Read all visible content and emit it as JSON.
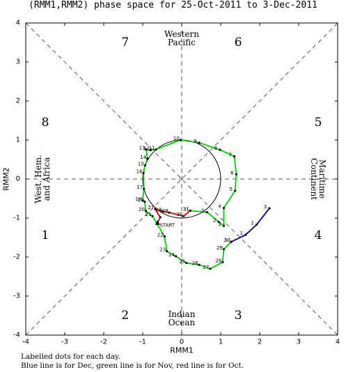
{
  "chart_data": {
    "type": "line",
    "title": "(RMM1,RMM2) phase space for 25-Oct-2011 to  3-Dec-2011",
    "xlabel": "RMM1",
    "ylabel": "RMM2",
    "xlim": [
      -4,
      4
    ],
    "ylim": [
      -4,
      4
    ],
    "x_ticks": [
      -4,
      -3,
      -2,
      -1,
      0,
      1,
      2,
      3,
      4
    ],
    "y_ticks": [
      -4,
      -3,
      -2,
      -1,
      0,
      1,
      2,
      3,
      4
    ],
    "grid": false,
    "unit_circle_radius": 1,
    "phases": [
      {
        "label": "1",
        "x": -3.5,
        "y": -1.45
      },
      {
        "label": "2",
        "x": -1.45,
        "y": -3.5
      },
      {
        "label": "3",
        "x": 1.45,
        "y": -3.5
      },
      {
        "label": "4",
        "x": 3.5,
        "y": -1.45
      },
      {
        "label": "5",
        "x": 3.5,
        "y": 1.45
      },
      {
        "label": "6",
        "x": 1.45,
        "y": 3.5
      },
      {
        "label": "7",
        "x": -1.45,
        "y": 3.5
      },
      {
        "label": "8",
        "x": -3.5,
        "y": 1.45
      }
    ],
    "regions": [
      {
        "id": "western-pacific",
        "lines": [
          "Western",
          "Pacific"
        ]
      },
      {
        "id": "indian-ocean",
        "lines": [
          "Indian",
          "Ocean"
        ]
      },
      {
        "id": "maritime-continent",
        "lines": [
          "Maritime",
          "Continent"
        ]
      },
      {
        "id": "west-hem-africa",
        "lines": [
          "West. Hem.",
          "and Africa"
        ]
      }
    ],
    "series": [
      {
        "name": "Oct",
        "color": "#cc0000",
        "points": [
          {
            "label": "",
            "x": -0.62,
            "y": -1.12
          },
          {
            "label": "",
            "x": -0.55,
            "y": -0.98
          },
          {
            "label": "27",
            "x": -0.68,
            "y": -0.77
          },
          {
            "label": "28",
            "x": -0.48,
            "y": -0.83
          },
          {
            "label": "29",
            "x": -0.32,
            "y": -0.86
          },
          {
            "label": "30",
            "x": 0.05,
            "y": -0.95
          },
          {
            "label": "31",
            "x": 0.22,
            "y": -0.81
          }
        ]
      },
      {
        "name": "Nov",
        "color": "#00cc00",
        "points": [
          {
            "label": "31",
            "x": 0.22,
            "y": -0.81
          },
          {
            "label": "1",
            "x": 0.65,
            "y": -0.85
          },
          {
            "label": "2",
            "x": 0.95,
            "y": -1.1
          },
          {
            "label": "3",
            "x": 1.08,
            "y": -1.2
          },
          {
            "label": "4",
            "x": 1.08,
            "y": -0.74
          },
          {
            "label": "5",
            "x": 1.37,
            "y": -0.3
          },
          {
            "label": "6",
            "x": 1.4,
            "y": 0.12
          },
          {
            "label": "7",
            "x": 1.35,
            "y": 0.58
          },
          {
            "label": "8",
            "x": 0.98,
            "y": 0.75
          },
          {
            "label": "9",
            "x": 0.45,
            "y": 0.93
          },
          {
            "label": "10",
            "x": -0.03,
            "y": 1.0
          },
          {
            "label": "11",
            "x": -0.66,
            "y": 0.76
          },
          {
            "label": "12",
            "x": -0.8,
            "y": 0.74
          },
          {
            "label": "13",
            "x": -0.91,
            "y": 0.76
          },
          {
            "label": "14",
            "x": -0.88,
            "y": 0.52
          },
          {
            "label": "15",
            "x": -0.94,
            "y": 0.35
          },
          {
            "label": "16",
            "x": -0.98,
            "y": 0.15
          },
          {
            "label": "17",
            "x": -0.97,
            "y": -0.25
          },
          {
            "label": "18",
            "x": -1.0,
            "y": -0.55
          },
          {
            "label": "19",
            "x": -0.95,
            "y": -0.58
          },
          {
            "label": "20",
            "x": -0.92,
            "y": -0.82
          },
          {
            "label": "21",
            "x": -0.75,
            "y": -0.95
          },
          {
            "label": "22",
            "x": -0.44,
            "y": -1.47
          },
          {
            "label": "23",
            "x": -0.38,
            "y": -1.85
          },
          {
            "label": "24",
            "x": -0.15,
            "y": -1.98
          },
          {
            "label": "25",
            "x": 0.12,
            "y": -2.15
          },
          {
            "label": "26",
            "x": 0.45,
            "y": -2.2
          },
          {
            "label": "27",
            "x": 0.73,
            "y": -2.3
          },
          {
            "label": "28",
            "x": 1.05,
            "y": -2.13
          },
          {
            "label": "29",
            "x": 1.08,
            "y": -1.8
          },
          {
            "label": "30",
            "x": 1.27,
            "y": -1.61
          }
        ]
      },
      {
        "name": "Dec",
        "color": "#00008b",
        "points": [
          {
            "label": "30",
            "x": 1.27,
            "y": -1.61
          },
          {
            "label": "1",
            "x": 1.64,
            "y": -1.43
          },
          {
            "label": "2",
            "x": 1.92,
            "y": -1.17
          },
          {
            "label": "3",
            "x": 2.25,
            "y": -0.75
          }
        ]
      }
    ],
    "start_label": "START",
    "start_point": {
      "x": -0.62,
      "y": -1.12
    }
  },
  "footnote": {
    "line1": "Labelled dots for each day.",
    "line2": "Blue line is for Dec, green line is for Nov, red line is for Oct."
  }
}
